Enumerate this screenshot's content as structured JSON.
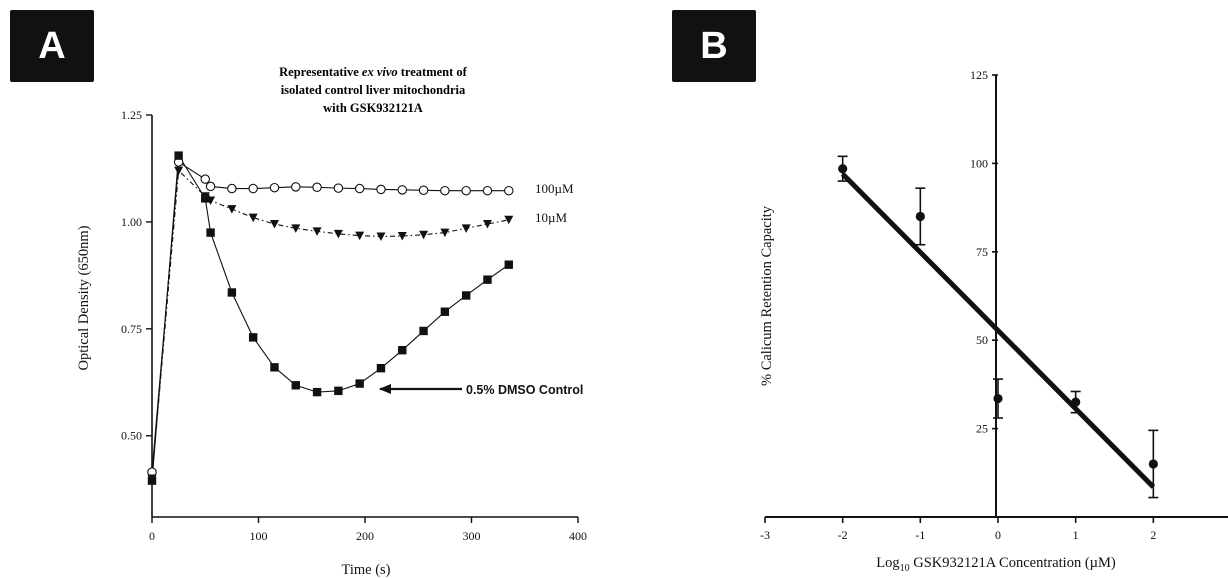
{
  "panels": {
    "a_label": "A",
    "b_label": "B"
  },
  "chart_data": [
    {
      "type": "line",
      "title_lines": [
        "Representative ex vivo treatment of",
        "isolated control liver mitochondria",
        "with GSK932121A"
      ],
      "title_italic": "ex vivo",
      "xlabel": "Time (s)",
      "ylabel": "Optical Density (650nm)",
      "xlim": [
        0,
        400
      ],
      "ylim": [
        0.31,
        1.25
      ],
      "xticks": [
        0,
        100,
        200,
        300,
        400
      ],
      "yticks": [
        0.5,
        0.75,
        1.0,
        1.25
      ],
      "ytick_labels": [
        "0.50",
        "0.75",
        "1.00",
        "1.25"
      ],
      "series": [
        {
          "name": "100µM",
          "marker": "open-circle",
          "line": "solid",
          "x": [
            0,
            25,
            50,
            55,
            75,
            95,
            115,
            135,
            155,
            175,
            195,
            215,
            235,
            255,
            275,
            295,
            315,
            335
          ],
          "y": [
            0.415,
            1.14,
            1.1,
            1.083,
            1.078,
            1.078,
            1.08,
            1.082,
            1.081,
            1.079,
            1.078,
            1.076,
            1.075,
            1.074,
            1.073,
            1.073,
            1.073,
            1.073
          ]
        },
        {
          "name": "10µM",
          "marker": "filled-triangle-down",
          "line": "dashed",
          "x": [
            0,
            25,
            50,
            55,
            75,
            95,
            115,
            135,
            155,
            175,
            195,
            215,
            235,
            255,
            275,
            295,
            315,
            335
          ],
          "y": [
            0.4,
            1.12,
            1.06,
            1.05,
            1.03,
            1.01,
            0.995,
            0.985,
            0.978,
            0.972,
            0.968,
            0.966,
            0.967,
            0.97,
            0.975,
            0.985,
            0.995,
            1.005
          ]
        },
        {
          "name": "0.5% DMSO  Control",
          "marker": "filled-square",
          "line": "solid",
          "x": [
            0,
            25,
            50,
            55,
            75,
            95,
            115,
            135,
            155,
            175,
            195,
            215,
            235,
            255,
            275,
            295,
            315,
            335
          ],
          "y": [
            0.395,
            1.155,
            1.055,
            0.975,
            0.835,
            0.73,
            0.66,
            0.618,
            0.602,
            0.605,
            0.622,
            0.658,
            0.7,
            0.745,
            0.79,
            0.828,
            0.865,
            0.9
          ]
        }
      ],
      "annotations": [
        {
          "text": "100µM",
          "series": "100µM"
        },
        {
          "text": "10µM",
          "series": "10µM"
        },
        {
          "text": "0.5% DMSO  Control",
          "arrow_to": {
            "x": 175,
            "y": 0.605
          }
        }
      ]
    },
    {
      "type": "scatter",
      "xlabel_prefix": "Log",
      "xlabel_sub": "10",
      "xlabel_rest": " GSK932121A Concentration  (µM)",
      "ylabel": "% Calicum Retention Capacity",
      "xlim": [
        -3,
        3
      ],
      "ylim": [
        0,
        125
      ],
      "xticks": [
        -3,
        -2,
        -1,
        0,
        1,
        2,
        3
      ],
      "yticks": [
        25,
        50,
        75,
        100,
        125
      ],
      "points": [
        {
          "x": -2,
          "y": 98.5,
          "err": 3.5
        },
        {
          "x": -1,
          "y": 85,
          "err": 8
        },
        {
          "x": 0,
          "y": 33.5,
          "err": 5.5
        },
        {
          "x": 1,
          "y": 32.5,
          "err": 3
        },
        {
          "x": 2,
          "y": 15,
          "err": 9.5
        }
      ],
      "fit_line": {
        "x": [
          -2,
          2
        ],
        "y": [
          97,
          8.5
        ]
      }
    }
  ]
}
